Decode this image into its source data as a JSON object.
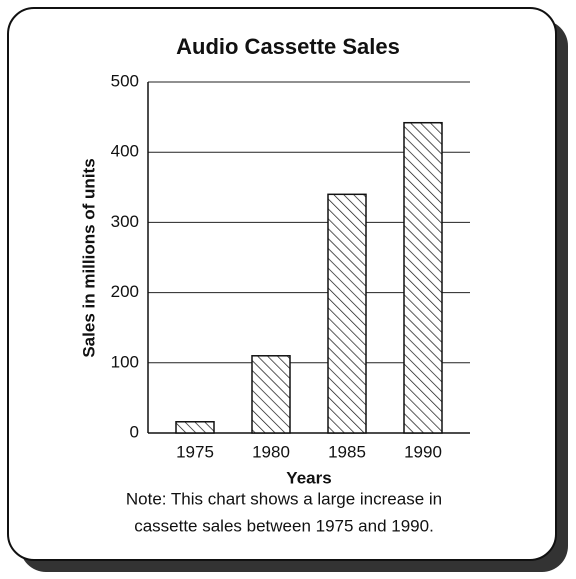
{
  "chart_data": {
    "type": "bar",
    "title": "Audio Cassette Sales",
    "x_label": "Years",
    "y_label": "Sales in millions of units",
    "categories": [
      "1975",
      "1980",
      "1985",
      "1990"
    ],
    "values": [
      16,
      110,
      340,
      442
    ],
    "color": "#111111",
    "ylim": [
      0,
      500
    ],
    "yticks": [
      0,
      100,
      200,
      300,
      400,
      500
    ],
    "grid": true,
    "note": [
      "Note: This chart shows a large increase in",
      "cassette sales between 1975 and 1990."
    ]
  }
}
